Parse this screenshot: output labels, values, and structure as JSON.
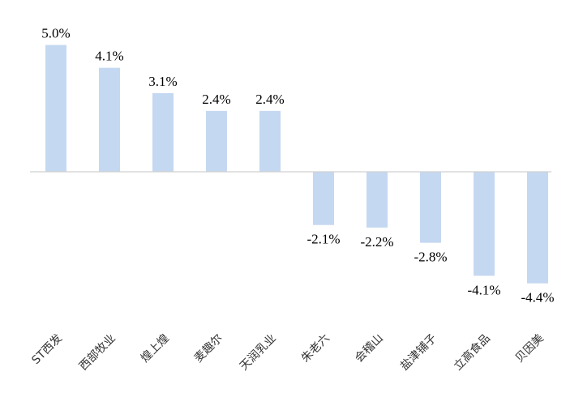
{
  "chart_data": {
    "type": "bar",
    "title": "",
    "xlabel": "",
    "ylabel": "",
    "ylim": [
      -5.2,
      5.6
    ],
    "grid": false,
    "legend": "none",
    "bar_color": "#c5d8f1",
    "axis_color": "#d0d0d0",
    "categories": [
      "ST西发",
      "西部牧业",
      "煌上煌",
      "麦趣尔",
      "天润乳业",
      "朱老六",
      "会稽山",
      "盐津铺子",
      "立高食品",
      "贝因美"
    ],
    "values": [
      5.0,
      4.1,
      3.1,
      2.4,
      2.4,
      -2.1,
      -2.2,
      -2.8,
      -4.1,
      -4.4
    ],
    "value_labels": [
      "5.0%",
      "4.1%",
      "3.1%",
      "2.4%",
      "2.4%",
      "-2.1%",
      "-2.2%",
      "-2.8%",
      "-4.1%",
      "-4.4%"
    ]
  }
}
